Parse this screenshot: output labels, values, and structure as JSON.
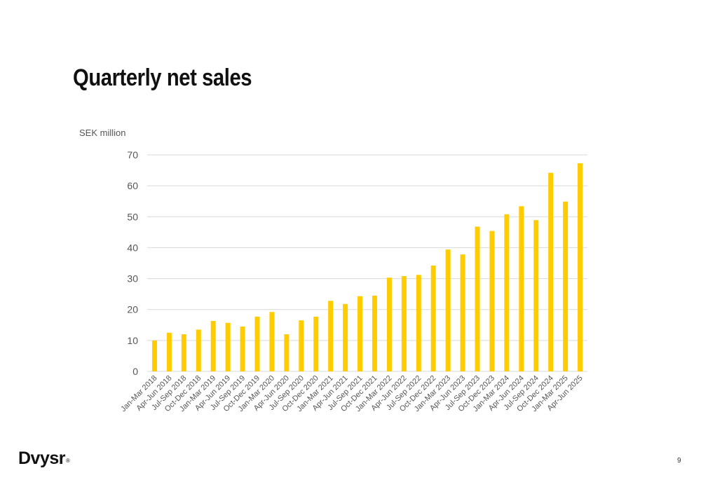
{
  "slide": {
    "title": "Quarterly net sales",
    "logo_text": "Dvysr",
    "logo_mark": "®",
    "page_number": "9"
  },
  "colors": {
    "bar": "#FFCC00",
    "grid": "#D9D9D9",
    "text": "#555555"
  },
  "chart_data": {
    "type": "bar",
    "title": "",
    "xlabel": "",
    "ylabel": "SEK million",
    "ylim": [
      0,
      70
    ],
    "yticks": [
      0,
      10,
      20,
      30,
      40,
      50,
      60,
      70
    ],
    "grid": "horizontal",
    "legend": "none",
    "categories": [
      "Jan-Mar 2018",
      "Apr-Jun 2018",
      "Jul-Sep 2018",
      "Oct-Dec 2018",
      "Jan-Mar 2019",
      "Apr-Jun 2019",
      "Jul-Sep 2019",
      "Oct-Dec 2019",
      "Jan-Mar 2020",
      "Apr-Jun 2020",
      "Jul-Sep 2020",
      "Oct-Dec 2020",
      "Jan-Mar 2021",
      "Apr-Jun 2021",
      "Jul-Sep 2021",
      "Oct-Dec 2021",
      "Jan-Mar 2022",
      "Apr-Jun 2022",
      "Jul-Sep 2022",
      "Oct-Dec 2022",
      "Jan-Mar 2023",
      "Apr-Jun 2023",
      "Jul-Sep 2023",
      "Oct-Dec 2023",
      "Jan-Mar 2024",
      "Apr-Jun 2024",
      "Jul-Sep 2024",
      "Oct-Dec 2024",
      "Jan-Mar 2025",
      "Apr-Jun 2025"
    ],
    "values": [
      10.0,
      12.5,
      12.0,
      13.5,
      16.3,
      15.7,
      14.5,
      17.7,
      19.2,
      12.0,
      16.5,
      17.7,
      22.8,
      21.8,
      24.3,
      24.5,
      30.3,
      30.8,
      31.2,
      34.2,
      39.4,
      37.8,
      46.8,
      45.4,
      50.8,
      53.4,
      48.9,
      64.2,
      54.9,
      67.3
    ]
  }
}
